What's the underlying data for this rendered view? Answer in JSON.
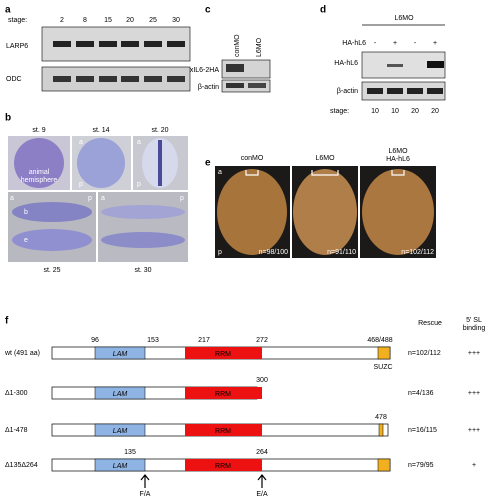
{
  "panel_a": {
    "label": "a",
    "stage_label": "stage:",
    "stages": [
      2,
      8,
      15,
      20,
      25,
      30
    ],
    "blots": [
      "LARP6",
      "ODC"
    ]
  },
  "panel_b": {
    "label": "b",
    "stages": [
      "st. 9",
      "st. 14",
      "st. 20",
      "st. 25",
      "st. 30"
    ],
    "annotations": [
      "animal",
      "hemisphere",
      "a",
      "p",
      "a",
      "p",
      "a",
      "p",
      "a",
      "p",
      "b",
      "e"
    ]
  },
  "panel_c": {
    "label": "c",
    "lanes": [
      "conMO",
      "L6MO"
    ],
    "blots": [
      "xIL6-2HA",
      "β-actin"
    ]
  },
  "panel_d": {
    "label": "d",
    "group": "L6MO",
    "row_label": "HA-hL6",
    "signs": [
      "-",
      "+",
      "-",
      "+"
    ],
    "blots": [
      "HA-hL6",
      "β-actin"
    ],
    "stage_label": "stage:",
    "stages": [
      10,
      10,
      20,
      20
    ]
  },
  "panel_e": {
    "label": "e",
    "titles": [
      "conMO",
      "L6MO",
      "L6MO",
      "HA-hL6"
    ],
    "axis_labels": [
      "a",
      "p"
    ],
    "counts": [
      "n=98/100",
      "n=91/110",
      "n=102/112"
    ]
  },
  "panel_f": {
    "label": "f",
    "headers": [
      "Rescue",
      "5' SL",
      "binding"
    ],
    "domains": [
      "LAM",
      "RRM",
      "SUZC"
    ],
    "rows": [
      {
        "name": "wt (491 aa)",
        "positions": [
          "96",
          "153",
          "217",
          "272",
          "468/488"
        ],
        "rescue": "n=102/112",
        "binding": "+++"
      },
      {
        "name": "Δ1-300",
        "positions": [
          "300"
        ],
        "rescue": "n=4/136",
        "binding": "+++"
      },
      {
        "name": "Δ1-478",
        "positions": [
          "478"
        ],
        "rescue": "n=16/115",
        "binding": "+++"
      },
      {
        "name": "Δ135Δ264",
        "positions": [
          "135",
          "264"
        ],
        "rescue": "n=79/95",
        "binding": "+"
      }
    ],
    "mutations": [
      "F/A",
      "E/A"
    ]
  }
}
